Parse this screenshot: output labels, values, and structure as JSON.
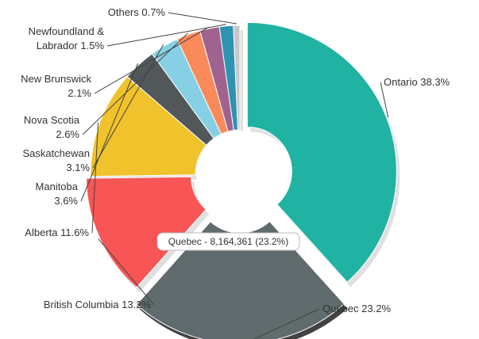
{
  "chart_data": {
    "type": "pie",
    "variant": "donut",
    "title": "",
    "categories": [
      "Ontario",
      "Quebec",
      "British Columbia",
      "Alberta",
      "Manitoba",
      "Saskatchewan",
      "Nova Scotia",
      "New Brunswick",
      "Newfoundland & Labrador",
      "Others"
    ],
    "values": [
      38.3,
      23.2,
      13.2,
      11.6,
      3.6,
      3.1,
      2.6,
      2.1,
      1.5,
      0.7
    ],
    "unit": "%",
    "labels": [
      "Ontario 38.3%",
      "Quebec 23.2%",
      "British Columbia 13.2%",
      "Alberta 11.6%",
      "Manitoba 3.6%",
      "Saskatchewan 3.1%",
      "Nova Scotia 2.6%",
      "New Brunswick 2.1%",
      "Newfoundland & Labrador 1.5%",
      "Others 0.7%"
    ],
    "colors": [
      "#20b2a2",
      "#5f6b6d",
      "#f75556",
      "#f0c22c",
      "#525759",
      "#86cfe4",
      "#fb8a5a",
      "#a0638f",
      "#2f93b2",
      "#c8c8c8"
    ],
    "highlighted": "Quebec",
    "legend": "none"
  },
  "tooltip": {
    "text": "Quebec - 8,164,361 (23.2%)"
  }
}
